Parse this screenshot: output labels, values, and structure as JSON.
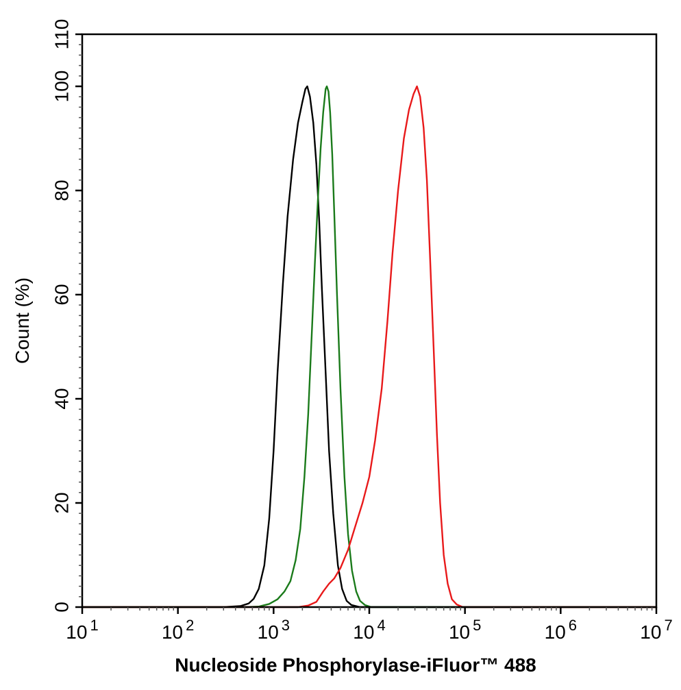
{
  "chart_data": {
    "type": "line",
    "title": "",
    "xlabel": "Nucleoside Phosphorylase-iFluor™ 488",
    "ylabel": "Count (%)",
    "xscale": "log",
    "xlim": [
      10,
      10000000
    ],
    "ylim": [
      0,
      110
    ],
    "x_ticks": [
      {
        "base": "10",
        "exp": "1",
        "value": 10
      },
      {
        "base": "10",
        "exp": "2",
        "value": 100
      },
      {
        "base": "10",
        "exp": "3",
        "value": 1000
      },
      {
        "base": "10",
        "exp": "4",
        "value": 10000
      },
      {
        "base": "10",
        "exp": "5",
        "value": 100000
      },
      {
        "base": "10",
        "exp": "6",
        "value": 1000000
      },
      {
        "base": "10",
        "exp": "7",
        "value": 10000000
      }
    ],
    "y_ticks": [
      0,
      20,
      40,
      60,
      80,
      100,
      110
    ],
    "grid": false,
    "legend": "none",
    "series": [
      {
        "color": "#000000",
        "points": [
          [
            10,
            0
          ],
          [
            300,
            0
          ],
          [
            450,
            0.2
          ],
          [
            550,
            0.7
          ],
          [
            620,
            1.6
          ],
          [
            700,
            3.5
          ],
          [
            800,
            8
          ],
          [
            900,
            17
          ],
          [
            1000,
            30
          ],
          [
            1100,
            45
          ],
          [
            1250,
            62
          ],
          [
            1400,
            75
          ],
          [
            1600,
            86
          ],
          [
            1800,
            93
          ],
          [
            2000,
            97
          ],
          [
            2150,
            99.5
          ],
          [
            2250,
            100
          ],
          [
            2400,
            98
          ],
          [
            2600,
            93
          ],
          [
            2800,
            85
          ],
          [
            3000,
            74
          ],
          [
            3200,
            61
          ],
          [
            3500,
            45
          ],
          [
            3800,
            30
          ],
          [
            4200,
            18
          ],
          [
            4700,
            8
          ],
          [
            5200,
            3.5
          ],
          [
            5800,
            1.2
          ],
          [
            6500,
            0.4
          ],
          [
            8000,
            0
          ],
          [
            10000000,
            0
          ]
        ]
      },
      {
        "color": "#1a7a1a",
        "points": [
          [
            10,
            0
          ],
          [
            500,
            0
          ],
          [
            700,
            0.1
          ],
          [
            900,
            0.6
          ],
          [
            1100,
            1.5
          ],
          [
            1300,
            3
          ],
          [
            1500,
            5
          ],
          [
            1700,
            9
          ],
          [
            1900,
            15
          ],
          [
            2100,
            25
          ],
          [
            2300,
            37
          ],
          [
            2500,
            52
          ],
          [
            2700,
            66
          ],
          [
            2900,
            78
          ],
          [
            3100,
            88
          ],
          [
            3300,
            95
          ],
          [
            3500,
            99.5
          ],
          [
            3600,
            100
          ],
          [
            3750,
            99
          ],
          [
            3900,
            95
          ],
          [
            4100,
            87
          ],
          [
            4300,
            76
          ],
          [
            4600,
            60
          ],
          [
            5000,
            42
          ],
          [
            5500,
            25
          ],
          [
            6000,
            14
          ],
          [
            6600,
            7
          ],
          [
            7300,
            3
          ],
          [
            8000,
            1.2
          ],
          [
            9000,
            0.4
          ],
          [
            10500,
            0
          ],
          [
            10000000,
            0
          ]
        ]
      },
      {
        "color": "#e8191a",
        "points": [
          [
            10,
            0
          ],
          [
            1800,
            0
          ],
          [
            2300,
            0.3
          ],
          [
            2800,
            1
          ],
          [
            3300,
            3
          ],
          [
            3800,
            4.5
          ],
          [
            4300,
            5.5
          ],
          [
            5000,
            7.5
          ],
          [
            6000,
            11
          ],
          [
            7000,
            15
          ],
          [
            8500,
            20
          ],
          [
            10000,
            25
          ],
          [
            11500,
            32
          ],
          [
            13500,
            42
          ],
          [
            15500,
            55
          ],
          [
            17500,
            68
          ],
          [
            20000,
            80
          ],
          [
            23000,
            90
          ],
          [
            26000,
            95.5
          ],
          [
            29000,
            98.5
          ],
          [
            31500,
            100
          ],
          [
            34000,
            98
          ],
          [
            37000,
            92
          ],
          [
            40000,
            82
          ],
          [
            43000,
            68
          ],
          [
            47000,
            50
          ],
          [
            51000,
            33
          ],
          [
            55000,
            20
          ],
          [
            60000,
            10
          ],
          [
            66000,
            4.5
          ],
          [
            73000,
            1.5
          ],
          [
            82000,
            0.5
          ],
          [
            95000,
            0
          ],
          [
            10000000,
            0
          ]
        ]
      }
    ]
  }
}
